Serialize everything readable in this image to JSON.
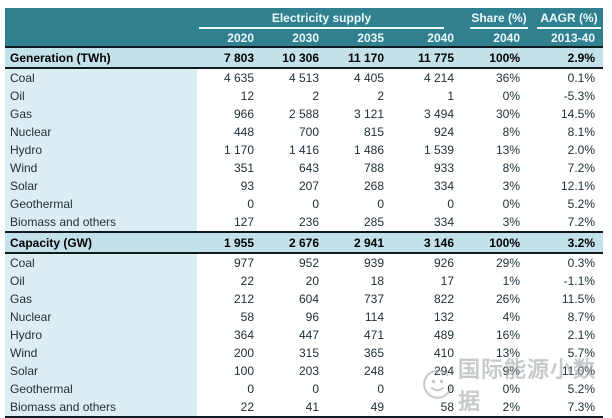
{
  "colors": {
    "header_teal": "#30808F",
    "header_text": "#EAF9FB",
    "section_bg": "#C3E1EB",
    "label_bg": "#DBEEF4",
    "border": "#0D1A1F",
    "text": "#1E2D36",
    "watermark": "#9B9FA2"
  },
  "table": {
    "group_headers": [
      {
        "label": "Electricity supply",
        "span": 4
      },
      {
        "label": "Share (%)",
        "span": 1
      },
      {
        "label": "AAGR (%)",
        "span": 1
      }
    ],
    "col_headers": [
      "2020",
      "2030",
      "2035",
      "2040",
      "2040",
      "2013-40"
    ],
    "sections": [
      {
        "title": "Generation (TWh)",
        "totals": [
          "7 803",
          "10 306",
          "11 170",
          "11 775",
          "100%",
          "2.9%"
        ],
        "rows": [
          {
            "label": "Coal",
            "values": [
              "4 635",
              "4 513",
              "4 405",
              "4 214",
              "36%",
              "0.1%"
            ]
          },
          {
            "label": "Oil",
            "values": [
              "12",
              "2",
              "2",
              "1",
              "0%",
              "-5.3%"
            ]
          },
          {
            "label": "Gas",
            "values": [
              "966",
              "2 588",
              "3 121",
              "3 494",
              "30%",
              "14.5%"
            ]
          },
          {
            "label": "Nuclear",
            "values": [
              "448",
              "700",
              "815",
              "924",
              "8%",
              "8.1%"
            ]
          },
          {
            "label": "Hydro",
            "values": [
              "1 170",
              "1 416",
              "1 486",
              "1 539",
              "13%",
              "2.0%"
            ]
          },
          {
            "label": "Wind",
            "values": [
              "351",
              "643",
              "788",
              "933",
              "8%",
              "7.2%"
            ]
          },
          {
            "label": "Solar",
            "values": [
              "93",
              "207",
              "268",
              "334",
              "3%",
              "12.1%"
            ]
          },
          {
            "label": "Geothermal",
            "values": [
              "0",
              "0",
              "0",
              "0",
              "0%",
              "5.2%"
            ]
          },
          {
            "label": "Biomass and others",
            "values": [
              "127",
              "236",
              "285",
              "334",
              "3%",
              "7.2%"
            ]
          }
        ]
      },
      {
        "title": "Capacity (GW)",
        "totals": [
          "1 955",
          "2 676",
          "2 941",
          "3 146",
          "100%",
          "3.2%"
        ],
        "rows": [
          {
            "label": "Coal",
            "values": [
              "977",
              "952",
              "939",
              "926",
              "29%",
              "0.3%"
            ]
          },
          {
            "label": "Oil",
            "values": [
              "22",
              "20",
              "18",
              "17",
              "1%",
              "-1.1%"
            ]
          },
          {
            "label": "Gas",
            "values": [
              "212",
              "604",
              "737",
              "822",
              "26%",
              "11.5%"
            ]
          },
          {
            "label": "Nuclear",
            "values": [
              "58",
              "96",
              "114",
              "132",
              "4%",
              "8.7%"
            ]
          },
          {
            "label": "Hydro",
            "values": [
              "364",
              "447",
              "471",
              "489",
              "16%",
              "2.1%"
            ]
          },
          {
            "label": "Wind",
            "values": [
              "200",
              "315",
              "365",
              "410",
              "13%",
              "5.7%"
            ]
          },
          {
            "label": "Solar",
            "values": [
              "100",
              "203",
              "248",
              "294",
              "9%",
              "11.0%"
            ]
          },
          {
            "label": "Geothermal",
            "values": [
              "0",
              "0",
              "0",
              "0",
              "0%",
              "5.2%"
            ]
          },
          {
            "label": "Biomass and others",
            "values": [
              "22",
              "41",
              "49",
              "58",
              "2%",
              "7.3%"
            ]
          }
        ]
      }
    ]
  },
  "watermark": {
    "text": "国际能源小数据"
  },
  "chart_data": {
    "type": "table",
    "title": "Electricity supply",
    "columns": [
      "",
      "2020",
      "2030",
      "2035",
      "2040",
      "Share (%) 2040",
      "AAGR (%) 2013-40"
    ],
    "rows": [
      [
        "Generation (TWh)",
        7803,
        10306,
        11170,
        11775,
        "100%",
        "2.9%"
      ],
      [
        "Coal",
        4635,
        4513,
        4405,
        4214,
        "36%",
        "0.1%"
      ],
      [
        "Oil",
        12,
        2,
        2,
        1,
        "0%",
        "-5.3%"
      ],
      [
        "Gas",
        966,
        2588,
        3121,
        3494,
        "30%",
        "14.5%"
      ],
      [
        "Nuclear",
        448,
        700,
        815,
        924,
        "8%",
        "8.1%"
      ],
      [
        "Hydro",
        1170,
        1416,
        1486,
        1539,
        "13%",
        "2.0%"
      ],
      [
        "Wind",
        351,
        643,
        788,
        933,
        "8%",
        "7.2%"
      ],
      [
        "Solar",
        93,
        207,
        268,
        334,
        "3%",
        "12.1%"
      ],
      [
        "Geothermal",
        0,
        0,
        0,
        0,
        "0%",
        "5.2%"
      ],
      [
        "Biomass and others",
        127,
        236,
        285,
        334,
        "3%",
        "7.2%"
      ],
      [
        "Capacity (GW)",
        1955,
        2676,
        2941,
        3146,
        "100%",
        "3.2%"
      ],
      [
        "Coal",
        977,
        952,
        939,
        926,
        "29%",
        "0.3%"
      ],
      [
        "Oil",
        22,
        20,
        18,
        17,
        "1%",
        "-1.1%"
      ],
      [
        "Gas",
        212,
        604,
        737,
        822,
        "26%",
        "11.5%"
      ],
      [
        "Nuclear",
        58,
        96,
        114,
        132,
        "4%",
        "8.7%"
      ],
      [
        "Hydro",
        364,
        447,
        471,
        489,
        "16%",
        "2.1%"
      ],
      [
        "Wind",
        200,
        315,
        365,
        410,
        "13%",
        "5.7%"
      ],
      [
        "Solar",
        100,
        203,
        248,
        294,
        "9%",
        "11.0%"
      ],
      [
        "Geothermal",
        0,
        0,
        0,
        0,
        "0%",
        "5.2%"
      ],
      [
        "Biomass and others",
        22,
        41,
        49,
        58,
        "2%",
        "7.3%"
      ]
    ]
  }
}
